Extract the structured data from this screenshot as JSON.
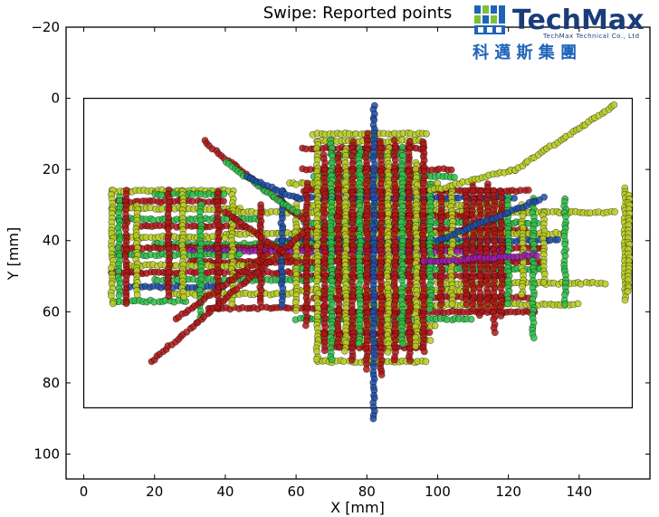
{
  "chart_data": {
    "type": "scatter",
    "title": "Swipe: Reported points",
    "xlabel": "X [mm]",
    "ylabel": "Y [mm]",
    "xlim": [
      -5,
      160
    ],
    "ylim": [
      107,
      -20
    ],
    "y_inverted": true,
    "grid": false,
    "xticks": [
      "0",
      "20",
      "40",
      "60",
      "80",
      "100",
      "120",
      "140"
    ],
    "yticks": [
      "−20",
      "0",
      "20",
      "40",
      "60",
      "80",
      "100"
    ],
    "xtick_values": [
      0,
      20,
      40,
      60,
      80,
      100,
      120,
      140
    ],
    "ytick_values": [
      -20,
      0,
      20,
      40,
      60,
      80,
      100
    ],
    "panel_rect": {
      "x0": 0,
      "y0": 0,
      "x1": 155,
      "y1": 87
    },
    "series_colors": [
      "#b8cc22",
      "#2fbf4a",
      "#b01818",
      "#1f4fa8",
      "#9a1fb0"
    ],
    "horizontal_swipes": [
      {
        "y": 10,
        "x": [
          65,
          97
        ],
        "c": 0
      },
      {
        "y": 12,
        "x": [
          66,
          96
        ],
        "c": 0
      },
      {
        "y": 14,
        "x": [
          62,
          97
        ],
        "c": 2
      },
      {
        "y": 16,
        "x": [
          70,
          90
        ],
        "c": 1
      },
      {
        "y": 20,
        "x": [
          62,
          104
        ],
        "c": 2
      },
      {
        "y": 22,
        "x": [
          65,
          105
        ],
        "c": 1
      },
      {
        "y": 24,
        "x": [
          58,
          100
        ],
        "c": 0
      },
      {
        "y": 26,
        "x": [
          8,
          42
        ],
        "c": 0
      },
      {
        "y": 26,
        "x": [
          62,
          126
        ],
        "c": 2
      },
      {
        "y": 27,
        "x": [
          20,
          40
        ],
        "c": 1
      },
      {
        "y": 28,
        "x": [
          60,
          122
        ],
        "c": 3
      },
      {
        "y": 29,
        "x": [
          10,
          40
        ],
        "c": 2
      },
      {
        "y": 30,
        "x": [
          64,
          120
        ],
        "c": 0
      },
      {
        "y": 31,
        "x": [
          8,
          45
        ],
        "c": 0
      },
      {
        "y": 32,
        "x": [
          40,
          150
        ],
        "c": 0
      },
      {
        "y": 33,
        "x": [
          70,
          110
        ],
        "c": 2
      },
      {
        "y": 34,
        "x": [
          10,
          50
        ],
        "c": 1
      },
      {
        "y": 35,
        "x": [
          62,
          128
        ],
        "c": 1
      },
      {
        "y": 36,
        "x": [
          15,
          46
        ],
        "c": 2
      },
      {
        "y": 37,
        "x": [
          60,
          125
        ],
        "c": 2
      },
      {
        "y": 38,
        "x": [
          40,
          136
        ],
        "c": 0
      },
      {
        "y": 39,
        "x": [
          8,
          40
        ],
        "c": 0
      },
      {
        "y": 40,
        "x": [
          55,
          135
        ],
        "c": 3
      },
      {
        "y": 41,
        "x": [
          20,
          112
        ],
        "c": 1
      },
      {
        "y": 42,
        "x": [
          10,
          130
        ],
        "c": 2
      },
      {
        "y": 43,
        "x": [
          30,
          120
        ],
        "c": 4
      },
      {
        "y": 44,
        "x": [
          8,
          45
        ],
        "c": 1
      },
      {
        "y": 45,
        "x": [
          50,
          128
        ],
        "c": 0
      },
      {
        "y": 46,
        "x": [
          30,
          130
        ],
        "c": 2
      },
      {
        "y": 47,
        "x": [
          12,
          50
        ],
        "c": 0
      },
      {
        "y": 48,
        "x": [
          60,
          130
        ],
        "c": 1
      },
      {
        "y": 49,
        "x": [
          8,
          60
        ],
        "c": 2
      },
      {
        "y": 50,
        "x": [
          60,
          120
        ],
        "c": 2
      },
      {
        "y": 51,
        "x": [
          20,
          75
        ],
        "c": 1
      },
      {
        "y": 52,
        "x": [
          100,
          148
        ],
        "c": 0
      },
      {
        "y": 53,
        "x": [
          12,
          40
        ],
        "c": 3
      },
      {
        "y": 54,
        "x": [
          60,
          110
        ],
        "c": 0
      },
      {
        "y": 55,
        "x": [
          25,
          60
        ],
        "c": 0
      },
      {
        "y": 56,
        "x": [
          65,
          126
        ],
        "c": 2
      },
      {
        "y": 57,
        "x": [
          8,
          30
        ],
        "c": 1
      },
      {
        "y": 58,
        "x": [
          80,
          140
        ],
        "c": 0
      },
      {
        "y": 59,
        "x": [
          35,
          70
        ],
        "c": 2
      },
      {
        "y": 60,
        "x": [
          70,
          128
        ],
        "c": 2
      },
      {
        "y": 62,
        "x": [
          60,
          110
        ],
        "c": 1
      },
      {
        "y": 64,
        "x": [
          75,
          100
        ],
        "c": 0
      },
      {
        "y": 66,
        "x": [
          67,
          98
        ],
        "c": 2
      },
      {
        "y": 68,
        "x": [
          66,
          98
        ],
        "c": 0
      },
      {
        "y": 70,
        "x": [
          70,
          96
        ],
        "c": 2
      },
      {
        "y": 74,
        "x": [
          66,
          97
        ],
        "c": 0
      }
    ],
    "vertical_swipes": [
      {
        "x": 8,
        "y": [
          26,
          58
        ],
        "c": 0
      },
      {
        "x": 10,
        "y": [
          28,
          56
        ],
        "c": 1
      },
      {
        "x": 12,
        "y": [
          26,
          58
        ],
        "c": 2
      },
      {
        "x": 15,
        "y": [
          30,
          56
        ],
        "c": 0
      },
      {
        "x": 24,
        "y": [
          26,
          56
        ],
        "c": 2
      },
      {
        "x": 28,
        "y": [
          26,
          56
        ],
        "c": 0
      },
      {
        "x": 33,
        "y": [
          30,
          62
        ],
        "c": 1
      },
      {
        "x": 38,
        "y": [
          26,
          60
        ],
        "c": 2
      },
      {
        "x": 42,
        "y": [
          26,
          58
        ],
        "c": 0
      },
      {
        "x": 50,
        "y": [
          30,
          58
        ],
        "c": 2
      },
      {
        "x": 56,
        "y": [
          26,
          58
        ],
        "c": 3
      },
      {
        "x": 60,
        "y": [
          30,
          60
        ],
        "c": 0
      },
      {
        "x": 63,
        "y": [
          24,
          64
        ],
        "c": 2
      },
      {
        "x": 66,
        "y": [
          12,
          74
        ],
        "c": 0
      },
      {
        "x": 68,
        "y": [
          16,
          72
        ],
        "c": 2
      },
      {
        "x": 70,
        "y": [
          12,
          74
        ],
        "c": 1
      },
      {
        "x": 72,
        "y": [
          16,
          70
        ],
        "c": 2
      },
      {
        "x": 74,
        "y": [
          14,
          72
        ],
        "c": 0
      },
      {
        "x": 76,
        "y": [
          12,
          74
        ],
        "c": 2
      },
      {
        "x": 78,
        "y": [
          14,
          70
        ],
        "c": 1
      },
      {
        "x": 80,
        "y": [
          10,
          76
        ],
        "c": 2
      },
      {
        "x": 82,
        "y": [
          2,
          90
        ],
        "c": 3
      },
      {
        "x": 84,
        "y": [
          12,
          78
        ],
        "c": 2
      },
      {
        "x": 86,
        "y": [
          14,
          72
        ],
        "c": 0
      },
      {
        "x": 88,
        "y": [
          12,
          74
        ],
        "c": 2
      },
      {
        "x": 90,
        "y": [
          14,
          70
        ],
        "c": 1
      },
      {
        "x": 92,
        "y": [
          12,
          74
        ],
        "c": 2
      },
      {
        "x": 94,
        "y": [
          18,
          70
        ],
        "c": 0
      },
      {
        "x": 96,
        "y": [
          12,
          72
        ],
        "c": 2
      },
      {
        "x": 98,
        "y": [
          24,
          60
        ],
        "c": 1
      },
      {
        "x": 101,
        "y": [
          26,
          58
        ],
        "c": 2
      },
      {
        "x": 104,
        "y": [
          26,
          58
        ],
        "c": 0
      },
      {
        "x": 108,
        "y": [
          26,
          58
        ],
        "c": 2
      },
      {
        "x": 110,
        "y": [
          24,
          60
        ],
        "c": 2
      },
      {
        "x": 112,
        "y": [
          26,
          62
        ],
        "c": 2
      },
      {
        "x": 114,
        "y": [
          24,
          60
        ],
        "c": 2
      },
      {
        "x": 116,
        "y": [
          26,
          66
        ],
        "c": 2
      },
      {
        "x": 118,
        "y": [
          26,
          62
        ],
        "c": 2
      },
      {
        "x": 120,
        "y": [
          28,
          58
        ],
        "c": 1
      },
      {
        "x": 124,
        "y": [
          30,
          56
        ],
        "c": 0
      },
      {
        "x": 127,
        "y": [
          28,
          68
        ],
        "c": 1
      },
      {
        "x": 130,
        "y": [
          32,
          52
        ],
        "c": 0
      },
      {
        "x": 136,
        "y": [
          28,
          58
        ],
        "c": 1
      },
      {
        "x": 153,
        "y": [
          25,
          58
        ],
        "c": 0
      },
      {
        "x": 154,
        "y": [
          27,
          55
        ],
        "c": 0
      }
    ],
    "diagonal_swipes": [
      {
        "from": [
          19,
          74
        ],
        "to": [
          62,
          38
        ],
        "c": 2
      },
      {
        "from": [
          26,
          62
        ],
        "to": [
          52,
          44
        ],
        "c": 2
      },
      {
        "from": [
          98,
          26
        ],
        "to": [
          122,
          20
        ],
        "c": 0
      },
      {
        "from": [
          122,
          20
        ],
        "to": [
          150,
          2
        ],
        "c": 0
      },
      {
        "from": [
          34,
          12
        ],
        "to": [
          62,
          34
        ],
        "c": 2
      },
      {
        "from": [
          40,
          18
        ],
        "to": [
          60,
          32
        ],
        "c": 1
      },
      {
        "from": [
          46,
          22
        ],
        "to": [
          60,
          28
        ],
        "c": 3
      },
      {
        "from": [
          40,
          32
        ],
        "to": [
          60,
          46
        ],
        "c": 2
      },
      {
        "from": [
          100,
          40
        ],
        "to": [
          130,
          28
        ],
        "c": 3
      },
      {
        "from": [
          96,
          46
        ],
        "to": [
          128,
          44
        ],
        "c": 4
      }
    ]
  },
  "logo": {
    "name": "TechMax",
    "subtitle": "TechMax Technical Co., Ltd",
    "chinese": "科 邁 斯 集 團"
  }
}
